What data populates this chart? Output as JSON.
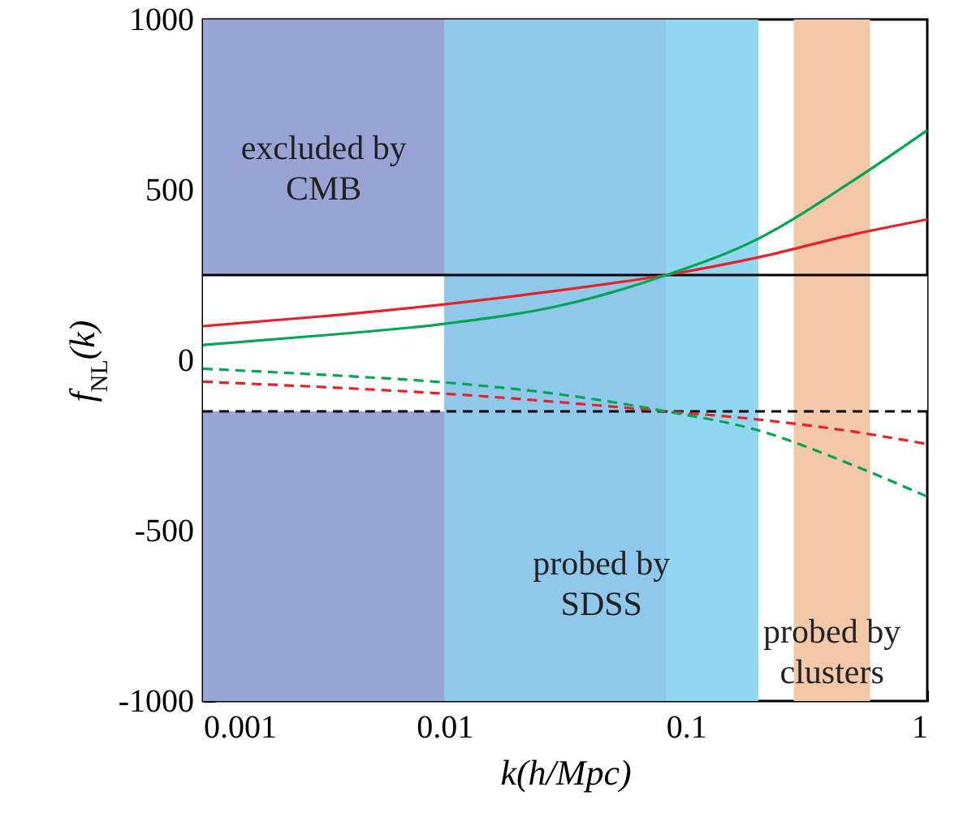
{
  "chart_data": {
    "type": "line",
    "xlabel": "k(h/Mpc)",
    "ylabel": "f$_{NL}$(k)",
    "log": "x",
    "x": [
      0.001,
      0.003,
      0.01,
      0.03,
      0.083,
      0.2,
      0.5,
      1
    ],
    "series": [
      {
        "color": "#e8202a",
        "line_style": "solid",
        "values": [
          100,
          128,
          164,
          205,
          250,
          302,
          370,
          413
        ]
      },
      {
        "color": "#00a651",
        "line_style": "solid",
        "values": [
          45,
          72,
          107,
          160,
          250,
          357,
          530,
          675
        ]
      },
      {
        "color": "#e8202a",
        "line_style": "dashed",
        "values": [
          -63,
          -78,
          -98,
          -123,
          -150,
          -174,
          -210,
          -246
        ]
      },
      {
        "color": "#00a651",
        "line_style": "dashed",
        "values": [
          -25,
          -42,
          -65,
          -100,
          -150,
          -206,
          -310,
          -400
        ]
      }
    ],
    "bands": [
      {
        "axis": "x",
        "from": 0.001,
        "to": 0.01,
        "label": "excluded by\nCMB",
        "color": "#98a4d4"
      },
      {
        "axis": "y",
        "from": -150,
        "to": 250,
        "color": "#ffffff"
      },
      {
        "axis": "x",
        "from": 0.01,
        "to": 0.2,
        "label": "probed by\nSDSS",
        "color": "#92d6ef"
      },
      {
        "axis": "x",
        "from": 0.01,
        "to": 0.083,
        "color": "#8fc8eb"
      },
      {
        "axis": "x",
        "from": 0.28,
        "to": 0.58,
        "label": "probed by\nclusters",
        "color": "#f2c8a9"
      }
    ],
    "ref_lines": [
      {
        "axis": "y",
        "value": 250,
        "color": "#000000",
        "line_style": "solid"
      },
      {
        "axis": "y",
        "value": -150,
        "color": "#000000",
        "line_style": "dashed"
      }
    ],
    "xlim": [
      0.001,
      1
    ],
    "xticks": [
      0.001,
      0.01,
      0.1,
      1
    ],
    "ylim": [
      -1000,
      1000
    ],
    "yticks": [
      -1000,
      -500,
      0,
      500,
      1000
    ]
  }
}
